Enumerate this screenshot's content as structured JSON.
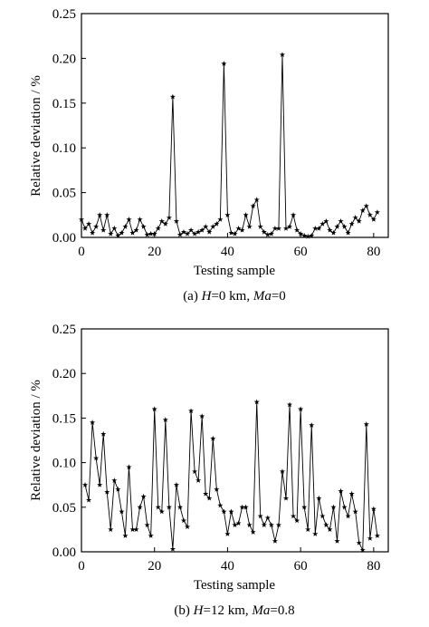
{
  "chart_data": [
    {
      "type": "line",
      "xlabel": "Testing sample",
      "ylabel": "Relative deviation / %",
      "xlim": [
        0,
        84
      ],
      "ylim": [
        0,
        0.25
      ],
      "xticks": [
        "0",
        "20",
        "40",
        "60",
        "80"
      ],
      "yticks": [
        "0.00",
        "0.05",
        "0.10",
        "0.15",
        "0.20",
        "0.25"
      ],
      "caption": {
        "prefix": "(a) ",
        "h_var": "H",
        "h_value": "=0 km, ",
        "ma_var": "Ma",
        "ma_value": "=0"
      },
      "marker": "star",
      "series": [
        {
          "x": [
            0,
            1,
            2,
            3,
            4,
            5,
            6,
            7,
            8,
            9,
            10,
            11,
            12,
            13,
            14,
            15,
            16,
            17,
            18,
            19,
            20,
            21,
            22,
            23,
            24,
            25,
            26,
            27,
            28,
            29,
            30,
            31,
            32,
            33,
            34,
            35,
            36,
            37,
            38,
            39,
            40,
            41,
            42,
            43,
            44,
            45,
            46,
            47,
            48,
            49,
            50,
            51,
            52,
            53,
            54,
            55,
            56,
            57,
            58,
            59,
            60,
            61,
            62,
            63,
            64,
            65,
            66,
            67,
            68,
            69,
            70,
            71,
            72,
            73,
            74,
            75,
            76,
            77,
            78,
            79,
            80,
            81
          ],
          "y": [
            0.02,
            0.01,
            0.015,
            0.005,
            0.012,
            0.025,
            0.008,
            0.025,
            0.004,
            0.01,
            0.002,
            0.005,
            0.012,
            0.02,
            0.005,
            0.008,
            0.02,
            0.012,
            0.003,
            0.004,
            0.004,
            0.01,
            0.018,
            0.015,
            0.022,
            0.157,
            0.018,
            0.003,
            0.006,
            0.004,
            0.008,
            0.004,
            0.006,
            0.008,
            0.012,
            0.006,
            0.012,
            0.015,
            0.02,
            0.194,
            0.025,
            0.005,
            0.004,
            0.01,
            0.008,
            0.025,
            0.012,
            0.035,
            0.042,
            0.012,
            0.006,
            0.003,
            0.004,
            0.01,
            0.01,
            0.204,
            0.01,
            0.012,
            0.025,
            0.008,
            0.004,
            0.002,
            0.001,
            0.002,
            0.01,
            0.01,
            0.015,
            0.018,
            0.008,
            0.005,
            0.012,
            0.018,
            0.012,
            0.005,
            0.015,
            0.022,
            0.018,
            0.03,
            0.035,
            0.025,
            0.02,
            0.028
          ]
        }
      ]
    },
    {
      "type": "line",
      "xlabel": "Testing sample",
      "ylabel": "Relative deviation / %",
      "xlim": [
        0,
        84
      ],
      "ylim": [
        0,
        0.25
      ],
      "xticks": [
        "0",
        "20",
        "40",
        "60",
        "80"
      ],
      "yticks": [
        "0.00",
        "0.05",
        "0.10",
        "0.15",
        "0.20",
        "0.25"
      ],
      "caption": {
        "prefix": "(b) ",
        "h_var": "H",
        "h_value": "=12 km, ",
        "ma_var": "Ma",
        "ma_value": "=0.8"
      },
      "marker": "star",
      "series": [
        {
          "x": [
            1,
            2,
            3,
            4,
            5,
            6,
            7,
            8,
            9,
            10,
            11,
            12,
            13,
            14,
            15,
            16,
            17,
            18,
            19,
            20,
            21,
            22,
            23,
            24,
            25,
            26,
            27,
            28,
            29,
            30,
            31,
            32,
            33,
            34,
            35,
            36,
            37,
            38,
            39,
            40,
            41,
            42,
            43,
            44,
            45,
            46,
            47,
            48,
            49,
            50,
            51,
            52,
            53,
            54,
            55,
            56,
            57,
            58,
            59,
            60,
            61,
            62,
            63,
            64,
            65,
            66,
            67,
            68,
            69,
            70,
            71,
            72,
            73,
            74,
            75,
            76,
            77,
            78,
            79,
            80,
            81
          ],
          "y": [
            0.075,
            0.058,
            0.145,
            0.105,
            0.075,
            0.132,
            0.067,
            0.025,
            0.08,
            0.07,
            0.045,
            0.018,
            0.095,
            0.025,
            0.025,
            0.05,
            0.062,
            0.03,
            0.018,
            0.16,
            0.05,
            0.045,
            0.148,
            0.05,
            0.003,
            0.075,
            0.05,
            0.035,
            0.028,
            0.158,
            0.09,
            0.08,
            0.152,
            0.065,
            0.06,
            0.127,
            0.07,
            0.052,
            0.045,
            0.02,
            0.045,
            0.03,
            0.032,
            0.05,
            0.05,
            0.03,
            0.022,
            0.168,
            0.04,
            0.03,
            0.038,
            0.03,
            0.012,
            0.03,
            0.09,
            0.06,
            0.165,
            0.04,
            0.035,
            0.16,
            0.05,
            0.025,
            0.142,
            0.02,
            0.06,
            0.04,
            0.03,
            0.025,
            0.05,
            0.012,
            0.068,
            0.05,
            0.04,
            0.065,
            0.045,
            0.01,
            0.002,
            0.143,
            0.015,
            0.048,
            0.018
          ]
        }
      ]
    }
  ]
}
